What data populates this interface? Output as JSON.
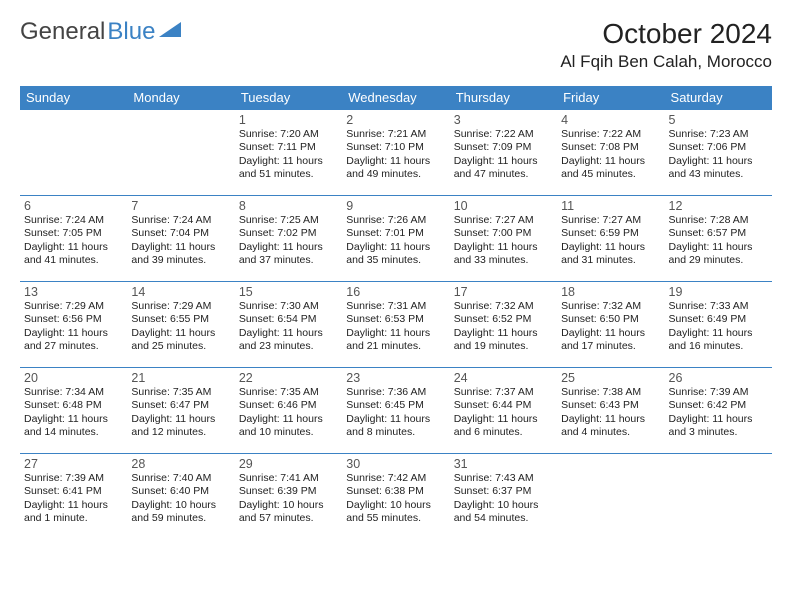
{
  "logo": {
    "text1": "General",
    "text2": "Blue",
    "icon_color": "#3b82c4"
  },
  "title": "October 2024",
  "location": "Al Fqih Ben Calah, Morocco",
  "header_bg": "#3b82c4",
  "header_fg": "#ffffff",
  "border_color": "#3b82c4",
  "weekday_labels": [
    "Sunday",
    "Monday",
    "Tuesday",
    "Wednesday",
    "Thursday",
    "Friday",
    "Saturday"
  ],
  "first_weekday_index": 2,
  "days": [
    {
      "n": 1,
      "sunrise": "7:20 AM",
      "sunset": "7:11 PM",
      "daylight": "11 hours and 51 minutes."
    },
    {
      "n": 2,
      "sunrise": "7:21 AM",
      "sunset": "7:10 PM",
      "daylight": "11 hours and 49 minutes."
    },
    {
      "n": 3,
      "sunrise": "7:22 AM",
      "sunset": "7:09 PM",
      "daylight": "11 hours and 47 minutes."
    },
    {
      "n": 4,
      "sunrise": "7:22 AM",
      "sunset": "7:08 PM",
      "daylight": "11 hours and 45 minutes."
    },
    {
      "n": 5,
      "sunrise": "7:23 AM",
      "sunset": "7:06 PM",
      "daylight": "11 hours and 43 minutes."
    },
    {
      "n": 6,
      "sunrise": "7:24 AM",
      "sunset": "7:05 PM",
      "daylight": "11 hours and 41 minutes."
    },
    {
      "n": 7,
      "sunrise": "7:24 AM",
      "sunset": "7:04 PM",
      "daylight": "11 hours and 39 minutes."
    },
    {
      "n": 8,
      "sunrise": "7:25 AM",
      "sunset": "7:02 PM",
      "daylight": "11 hours and 37 minutes."
    },
    {
      "n": 9,
      "sunrise": "7:26 AM",
      "sunset": "7:01 PM",
      "daylight": "11 hours and 35 minutes."
    },
    {
      "n": 10,
      "sunrise": "7:27 AM",
      "sunset": "7:00 PM",
      "daylight": "11 hours and 33 minutes."
    },
    {
      "n": 11,
      "sunrise": "7:27 AM",
      "sunset": "6:59 PM",
      "daylight": "11 hours and 31 minutes."
    },
    {
      "n": 12,
      "sunrise": "7:28 AM",
      "sunset": "6:57 PM",
      "daylight": "11 hours and 29 minutes."
    },
    {
      "n": 13,
      "sunrise": "7:29 AM",
      "sunset": "6:56 PM",
      "daylight": "11 hours and 27 minutes."
    },
    {
      "n": 14,
      "sunrise": "7:29 AM",
      "sunset": "6:55 PM",
      "daylight": "11 hours and 25 minutes."
    },
    {
      "n": 15,
      "sunrise": "7:30 AM",
      "sunset": "6:54 PM",
      "daylight": "11 hours and 23 minutes."
    },
    {
      "n": 16,
      "sunrise": "7:31 AM",
      "sunset": "6:53 PM",
      "daylight": "11 hours and 21 minutes."
    },
    {
      "n": 17,
      "sunrise": "7:32 AM",
      "sunset": "6:52 PM",
      "daylight": "11 hours and 19 minutes."
    },
    {
      "n": 18,
      "sunrise": "7:32 AM",
      "sunset": "6:50 PM",
      "daylight": "11 hours and 17 minutes."
    },
    {
      "n": 19,
      "sunrise": "7:33 AM",
      "sunset": "6:49 PM",
      "daylight": "11 hours and 16 minutes."
    },
    {
      "n": 20,
      "sunrise": "7:34 AM",
      "sunset": "6:48 PM",
      "daylight": "11 hours and 14 minutes."
    },
    {
      "n": 21,
      "sunrise": "7:35 AM",
      "sunset": "6:47 PM",
      "daylight": "11 hours and 12 minutes."
    },
    {
      "n": 22,
      "sunrise": "7:35 AM",
      "sunset": "6:46 PM",
      "daylight": "11 hours and 10 minutes."
    },
    {
      "n": 23,
      "sunrise": "7:36 AM",
      "sunset": "6:45 PM",
      "daylight": "11 hours and 8 minutes."
    },
    {
      "n": 24,
      "sunrise": "7:37 AM",
      "sunset": "6:44 PM",
      "daylight": "11 hours and 6 minutes."
    },
    {
      "n": 25,
      "sunrise": "7:38 AM",
      "sunset": "6:43 PM",
      "daylight": "11 hours and 4 minutes."
    },
    {
      "n": 26,
      "sunrise": "7:39 AM",
      "sunset": "6:42 PM",
      "daylight": "11 hours and 3 minutes."
    },
    {
      "n": 27,
      "sunrise": "7:39 AM",
      "sunset": "6:41 PM",
      "daylight": "11 hours and 1 minute."
    },
    {
      "n": 28,
      "sunrise": "7:40 AM",
      "sunset": "6:40 PM",
      "daylight": "10 hours and 59 minutes."
    },
    {
      "n": 29,
      "sunrise": "7:41 AM",
      "sunset": "6:39 PM",
      "daylight": "10 hours and 57 minutes."
    },
    {
      "n": 30,
      "sunrise": "7:42 AM",
      "sunset": "6:38 PM",
      "daylight": "10 hours and 55 minutes."
    },
    {
      "n": 31,
      "sunrise": "7:43 AM",
      "sunset": "6:37 PM",
      "daylight": "10 hours and 54 minutes."
    }
  ]
}
